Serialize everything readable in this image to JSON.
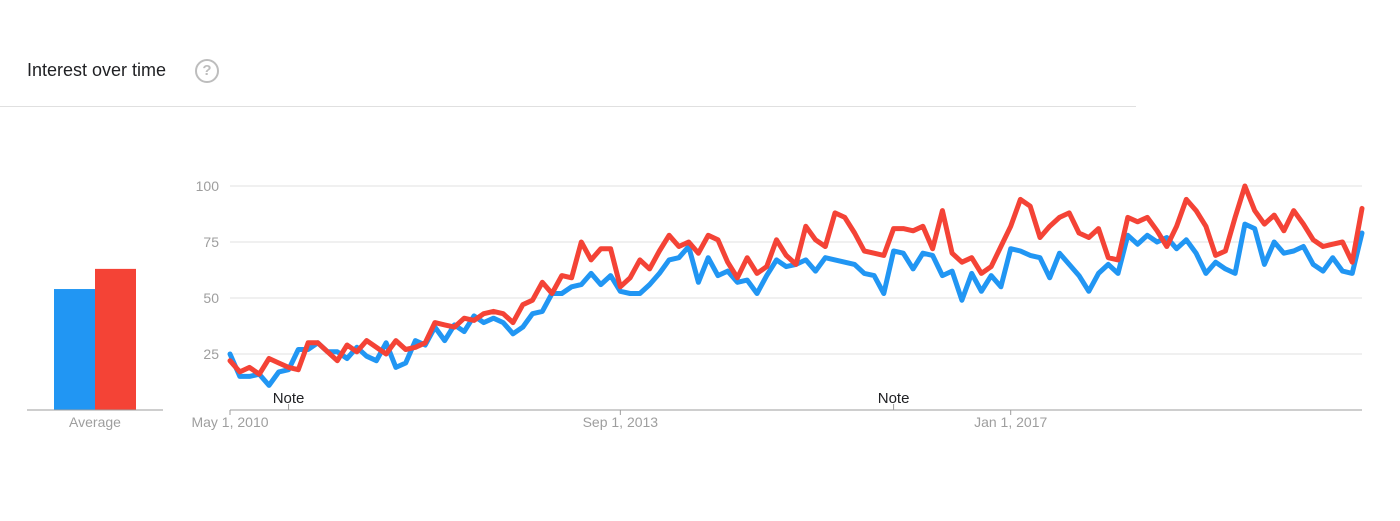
{
  "header": {
    "title": "Interest over time",
    "help_icon": "question-mark-icon",
    "help_glyph": "?"
  },
  "colors": {
    "series_1": "#2196f3",
    "series_2": "#f44336",
    "grid": "#e0e0e0",
    "axis": "#9e9e9e"
  },
  "average": {
    "label": "Average",
    "values": [
      54,
      63
    ]
  },
  "annotations": [
    {
      "label": "Note",
      "x": "2010-11"
    },
    {
      "label": "Note",
      "x": "2016-01"
    }
  ],
  "chart_data": {
    "type": "line",
    "x_start": "2010-05",
    "x_step": "month",
    "x_ticks": [
      {
        "label": "May 1, 2010",
        "x": "2010-05"
      },
      {
        "label": "Sep 1, 2013",
        "x": "2013-09"
      },
      {
        "label": "Jan 1, 2017",
        "x": "2017-01"
      }
    ],
    "ylim": [
      0,
      100
    ],
    "y_ticks": [
      25,
      50,
      75,
      100
    ],
    "grid": true,
    "series": [
      {
        "values": [
          25,
          15,
          15,
          16,
          11,
          17,
          18,
          27,
          27,
          30,
          26,
          26,
          23,
          28,
          24,
          22,
          30,
          19,
          21,
          31,
          29,
          37,
          31,
          38,
          35,
          42,
          39,
          41,
          39,
          34,
          37,
          43,
          44,
          52,
          52,
          55,
          56,
          61,
          56,
          60,
          53,
          52,
          52,
          56,
          61,
          67,
          68,
          73,
          57,
          68,
          60,
          62,
          57,
          58,
          52,
          60,
          67,
          64,
          65,
          67,
          62,
          68,
          67,
          66,
          65,
          61,
          60,
          52,
          71,
          70,
          63,
          70,
          69,
          60,
          62,
          49,
          61,
          53,
          60,
          55,
          72,
          71,
          69,
          68,
          59,
          70,
          65,
          60,
          53,
          61,
          65,
          61,
          78,
          74,
          78,
          75,
          77,
          72,
          76,
          70,
          61,
          66,
          63,
          61,
          83,
          81,
          65,
          75,
          70,
          71,
          73,
          65,
          62,
          68,
          62,
          61,
          79
        ]
      },
      {
        "values": [
          22,
          17,
          19,
          16,
          23,
          21,
          19,
          18,
          30,
          30,
          26,
          22,
          29,
          26,
          31,
          28,
          25,
          31,
          27,
          28,
          30,
          39,
          38,
          37,
          41,
          40,
          43,
          44,
          43,
          39,
          47,
          49,
          57,
          52,
          60,
          59,
          75,
          67,
          72,
          72,
          55,
          59,
          67,
          63,
          71,
          78,
          73,
          75,
          70,
          78,
          76,
          66,
          59,
          68,
          61,
          64,
          76,
          69,
          65,
          82,
          76,
          73,
          88,
          86,
          79,
          71,
          70,
          69,
          81,
          81,
          80,
          82,
          72,
          89,
          70,
          66,
          68,
          61,
          64,
          73,
          82,
          94,
          91,
          77,
          82,
          86,
          88,
          79,
          77,
          81,
          68,
          67,
          86,
          84,
          86,
          80,
          73,
          82,
          94,
          89,
          82,
          69,
          71,
          86,
          100,
          89,
          83,
          87,
          80,
          89,
          83,
          76,
          73,
          74,
          75,
          66,
          90
        ]
      }
    ]
  }
}
